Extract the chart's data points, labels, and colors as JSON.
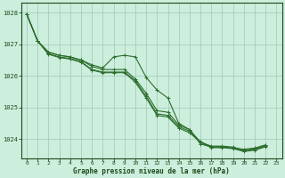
{
  "background_color": "#cceedd",
  "grid_color": "#aaccbb",
  "line_color": "#2d6e2d",
  "text_color": "#1a4a1a",
  "xlabel": "Graphe pression niveau de la mer (hPa)",
  "ylim": [
    1023.4,
    1028.3
  ],
  "xlim": [
    -0.5,
    23.5
  ],
  "yticks": [
    1024,
    1025,
    1026,
    1027,
    1028
  ],
  "xticks": [
    0,
    1,
    2,
    3,
    4,
    5,
    6,
    7,
    8,
    9,
    10,
    11,
    12,
    13,
    14,
    15,
    16,
    17,
    18,
    19,
    20,
    21,
    22,
    23
  ],
  "series": [
    [
      1027.95,
      1027.1,
      1026.75,
      1026.65,
      1026.6,
      1026.5,
      1026.35,
      1026.25,
      1026.6,
      1026.65,
      1026.6,
      1025.95,
      1025.55,
      1025.3,
      1024.5,
      1024.3,
      1023.85,
      1023.75,
      1023.75,
      1023.72,
      1023.68,
      1023.72,
      1023.82
    ],
    [
      1027.95,
      1027.1,
      1026.75,
      1026.65,
      1026.6,
      1026.5,
      1026.3,
      1026.2,
      1026.2,
      1026.2,
      1025.9,
      1025.45,
      1024.9,
      1024.85,
      1024.45,
      1024.3,
      1023.9,
      1023.78,
      1023.78,
      1023.75,
      1023.65,
      1023.7,
      1023.8
    ],
    [
      1027.95,
      1027.1,
      1026.7,
      1026.6,
      1026.55,
      1026.45,
      1026.2,
      1026.12,
      1026.12,
      1026.12,
      1025.85,
      1025.35,
      1024.8,
      1024.75,
      1024.4,
      1024.25,
      1023.92,
      1023.76,
      1023.76,
      1023.72,
      1023.63,
      1023.68,
      1023.78
    ],
    [
      1027.95,
      1027.1,
      1026.68,
      1026.58,
      1026.53,
      1026.43,
      1026.18,
      1026.1,
      1026.1,
      1026.1,
      1025.8,
      1025.3,
      1024.75,
      1024.7,
      1024.35,
      1024.2,
      1023.9,
      1023.73,
      1023.73,
      1023.7,
      1023.61,
      1023.65,
      1023.76
    ]
  ]
}
